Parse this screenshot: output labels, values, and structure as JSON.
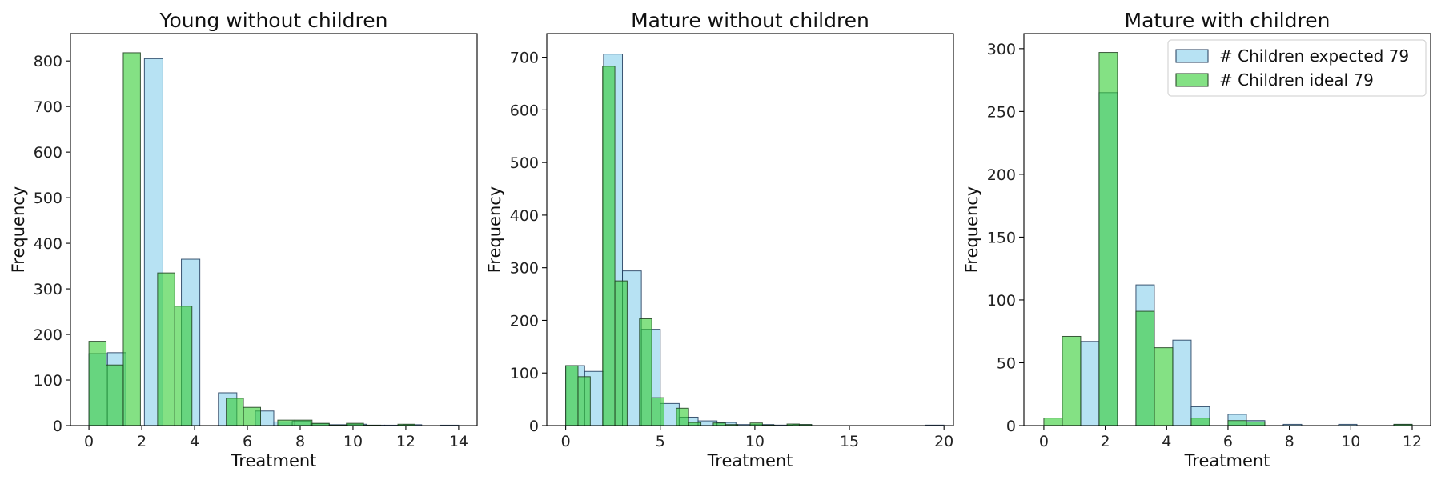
{
  "chart_data": [
    {
      "type": "bar",
      "title": "Young without children",
      "xlabel": "Treatment",
      "ylabel": "Frequency",
      "xlim": [
        -0.7,
        14.7
      ],
      "ylim": [
        0,
        860
      ],
      "xticks": [
        0,
        2,
        4,
        6,
        8,
        10,
        12,
        14
      ],
      "yticks": [
        0,
        100,
        200,
        300,
        400,
        500,
        600,
        700,
        800
      ],
      "legend": null,
      "series": [
        {
          "name": "# Children expected 79",
          "color": "#87ceeb",
          "bins": [
            {
              "x0": 0.0,
              "x1": 0.7,
              "y": 158
            },
            {
              "x0": 0.7,
              "x1": 1.4,
              "y": 160
            },
            {
              "x0": 1.4,
              "x1": 2.1,
              "y": 0
            },
            {
              "x0": 2.1,
              "x1": 2.8,
              "y": 805
            },
            {
              "x0": 2.8,
              "x1": 3.5,
              "y": 0
            },
            {
              "x0": 3.5,
              "x1": 4.2,
              "y": 365
            },
            {
              "x0": 4.2,
              "x1": 4.9,
              "y": 0
            },
            {
              "x0": 4.9,
              "x1": 5.6,
              "y": 72
            },
            {
              "x0": 5.6,
              "x1": 6.3,
              "y": 0
            },
            {
              "x0": 6.3,
              "x1": 7.0,
              "y": 32
            },
            {
              "x0": 7.0,
              "x1": 7.7,
              "y": 8
            },
            {
              "x0": 7.7,
              "x1": 8.4,
              "y": 10
            },
            {
              "x0": 8.4,
              "x1": 9.1,
              "y": 4
            },
            {
              "x0": 9.1,
              "x1": 9.8,
              "y": 2
            },
            {
              "x0": 9.8,
              "x1": 10.5,
              "y": 3
            },
            {
              "x0": 10.5,
              "x1": 11.2,
              "y": 1
            },
            {
              "x0": 11.2,
              "x1": 11.9,
              "y": 1
            },
            {
              "x0": 11.9,
              "x1": 12.6,
              "y": 2
            },
            {
              "x0": 12.6,
              "x1": 13.3,
              "y": 0
            },
            {
              "x0": 13.3,
              "x1": 14.0,
              "y": 1
            }
          ]
        },
        {
          "name": "# Children ideal 79",
          "color": "#32cd32",
          "bins": [
            {
              "x0": 0.0,
              "x1": 0.65,
              "y": 185
            },
            {
              "x0": 0.65,
              "x1": 1.3,
              "y": 133
            },
            {
              "x0": 1.3,
              "x1": 1.95,
              "y": 818
            },
            {
              "x0": 1.95,
              "x1": 2.6,
              "y": 0
            },
            {
              "x0": 2.6,
              "x1": 3.25,
              "y": 335
            },
            {
              "x0": 3.25,
              "x1": 3.9,
              "y": 262
            },
            {
              "x0": 3.9,
              "x1": 4.55,
              "y": 0
            },
            {
              "x0": 4.55,
              "x1": 5.2,
              "y": 0
            },
            {
              "x0": 5.2,
              "x1": 5.85,
              "y": 60
            },
            {
              "x0": 5.85,
              "x1": 6.5,
              "y": 40
            },
            {
              "x0": 6.5,
              "x1": 7.15,
              "y": 0
            },
            {
              "x0": 7.15,
              "x1": 7.8,
              "y": 12
            },
            {
              "x0": 7.8,
              "x1": 8.45,
              "y": 12
            },
            {
              "x0": 8.45,
              "x1": 9.1,
              "y": 5
            },
            {
              "x0": 9.1,
              "x1": 9.75,
              "y": 1
            },
            {
              "x0": 9.75,
              "x1": 10.4,
              "y": 5
            },
            {
              "x0": 10.4,
              "x1": 11.05,
              "y": 1
            },
            {
              "x0": 11.05,
              "x1": 11.7,
              "y": 0
            },
            {
              "x0": 11.7,
              "x1": 12.35,
              "y": 3
            },
            {
              "x0": 12.35,
              "x1": 13.0,
              "y": 0
            }
          ]
        }
      ]
    },
    {
      "type": "bar",
      "title": "Mature without children",
      "xlabel": "Treatment",
      "ylabel": "Frequency",
      "xlim": [
        -1.0,
        20.5
      ],
      "ylim": [
        0,
        745
      ],
      "xticks": [
        0,
        5,
        10,
        15,
        20
      ],
      "yticks": [
        0,
        100,
        200,
        300,
        400,
        500,
        600,
        700
      ],
      "legend": null,
      "series": [
        {
          "name": "# Children expected 79",
          "color": "#87ceeb",
          "bins": [
            {
              "x0": 0.0,
              "x1": 1.0,
              "y": 114
            },
            {
              "x0": 1.0,
              "x1": 2.0,
              "y": 103
            },
            {
              "x0": 2.0,
              "x1": 3.0,
              "y": 706
            },
            {
              "x0": 3.0,
              "x1": 4.0,
              "y": 294
            },
            {
              "x0": 4.0,
              "x1": 5.0,
              "y": 183
            },
            {
              "x0": 5.0,
              "x1": 6.0,
              "y": 42
            },
            {
              "x0": 6.0,
              "x1": 7.0,
              "y": 16
            },
            {
              "x0": 7.0,
              "x1": 8.0,
              "y": 9
            },
            {
              "x0": 8.0,
              "x1": 9.0,
              "y": 6
            },
            {
              "x0": 9.0,
              "x1": 10.0,
              "y": 2
            },
            {
              "x0": 10.0,
              "x1": 11.0,
              "y": 2
            },
            {
              "x0": 11.0,
              "x1": 12.0,
              "y": 1
            },
            {
              "x0": 12.0,
              "x1": 13.0,
              "y": 2
            },
            {
              "x0": 13.0,
              "x1": 14.0,
              "y": 0
            },
            {
              "x0": 14.0,
              "x1": 15.0,
              "y": 0
            },
            {
              "x0": 15.0,
              "x1": 16.0,
              "y": 0
            },
            {
              "x0": 16.0,
              "x1": 17.0,
              "y": 0
            },
            {
              "x0": 17.0,
              "x1": 18.0,
              "y": 0
            },
            {
              "x0": 18.0,
              "x1": 19.0,
              "y": 0
            },
            {
              "x0": 19.0,
              "x1": 20.0,
              "y": 1
            }
          ]
        },
        {
          "name": "# Children ideal 79",
          "color": "#32cd32",
          "bins": [
            {
              "x0": 0.0,
              "x1": 0.65,
              "y": 114
            },
            {
              "x0": 0.65,
              "x1": 1.3,
              "y": 93
            },
            {
              "x0": 1.3,
              "x1": 1.95,
              "y": 0
            },
            {
              "x0": 1.95,
              "x1": 2.6,
              "y": 683
            },
            {
              "x0": 2.6,
              "x1": 3.25,
              "y": 275
            },
            {
              "x0": 3.25,
              "x1": 3.9,
              "y": 0
            },
            {
              "x0": 3.9,
              "x1": 4.55,
              "y": 203
            },
            {
              "x0": 4.55,
              "x1": 5.2,
              "y": 53
            },
            {
              "x0": 5.2,
              "x1": 5.85,
              "y": 0
            },
            {
              "x0": 5.85,
              "x1": 6.5,
              "y": 33
            },
            {
              "x0": 6.5,
              "x1": 7.15,
              "y": 6
            },
            {
              "x0": 7.15,
              "x1": 7.8,
              "y": 0
            },
            {
              "x0": 7.8,
              "x1": 8.45,
              "y": 5
            },
            {
              "x0": 8.45,
              "x1": 9.1,
              "y": 2
            },
            {
              "x0": 9.1,
              "x1": 9.75,
              "y": 0
            },
            {
              "x0": 9.75,
              "x1": 10.4,
              "y": 5
            },
            {
              "x0": 10.4,
              "x1": 11.05,
              "y": 1
            },
            {
              "x0": 11.05,
              "x1": 11.7,
              "y": 0
            },
            {
              "x0": 11.7,
              "x1": 12.35,
              "y": 3
            },
            {
              "x0": 12.35,
              "x1": 13.0,
              "y": 2
            }
          ]
        }
      ]
    },
    {
      "type": "bar",
      "title": "Mature with children",
      "xlabel": "Treatment",
      "ylabel": "Frequency",
      "xlim": [
        -0.65,
        12.6
      ],
      "ylim": [
        0,
        312
      ],
      "xticks": [
        0,
        2,
        4,
        6,
        8,
        10,
        12
      ],
      "yticks": [
        0,
        50,
        100,
        150,
        200,
        250,
        300
      ],
      "legend": "upper right",
      "series": [
        {
          "name": "# Children expected 79",
          "color": "#87ceeb",
          "bins": [
            {
              "x0": 0.0,
              "x1": 0.6,
              "y": 0
            },
            {
              "x0": 0.6,
              "x1": 1.2,
              "y": 0
            },
            {
              "x0": 1.2,
              "x1": 1.8,
              "y": 67
            },
            {
              "x0": 1.8,
              "x1": 2.4,
              "y": 265
            },
            {
              "x0": 2.4,
              "x1": 3.0,
              "y": 0
            },
            {
              "x0": 3.0,
              "x1": 3.6,
              "y": 112
            },
            {
              "x0": 3.6,
              "x1": 4.2,
              "y": 0
            },
            {
              "x0": 4.2,
              "x1": 4.8,
              "y": 68
            },
            {
              "x0": 4.8,
              "x1": 5.4,
              "y": 15
            },
            {
              "x0": 5.4,
              "x1": 6.0,
              "y": 0
            },
            {
              "x0": 6.0,
              "x1": 6.6,
              "y": 9
            },
            {
              "x0": 6.6,
              "x1": 7.2,
              "y": 4
            },
            {
              "x0": 7.2,
              "x1": 7.8,
              "y": 0
            },
            {
              "x0": 7.8,
              "x1": 8.4,
              "y": 1
            },
            {
              "x0": 8.4,
              "x1": 9.0,
              "y": 0
            },
            {
              "x0": 9.0,
              "x1": 9.6,
              "y": 0
            },
            {
              "x0": 9.6,
              "x1": 10.2,
              "y": 1
            },
            {
              "x0": 10.2,
              "x1": 10.8,
              "y": 0
            },
            {
              "x0": 10.8,
              "x1": 11.4,
              "y": 0
            },
            {
              "x0": 11.4,
              "x1": 12.0,
              "y": 1
            }
          ]
        },
        {
          "name": "# Children ideal 79",
          "color": "#32cd32",
          "bins": [
            {
              "x0": 0.0,
              "x1": 0.6,
              "y": 6
            },
            {
              "x0": 0.6,
              "x1": 1.2,
              "y": 71
            },
            {
              "x0": 1.2,
              "x1": 1.8,
              "y": 0
            },
            {
              "x0": 1.8,
              "x1": 2.4,
              "y": 297
            },
            {
              "x0": 2.4,
              "x1": 3.0,
              "y": 0
            },
            {
              "x0": 3.0,
              "x1": 3.6,
              "y": 91
            },
            {
              "x0": 3.6,
              "x1": 4.2,
              "y": 62
            },
            {
              "x0": 4.2,
              "x1": 4.8,
              "y": 0
            },
            {
              "x0": 4.8,
              "x1": 5.4,
              "y": 6
            },
            {
              "x0": 5.4,
              "x1": 6.0,
              "y": 0
            },
            {
              "x0": 6.0,
              "x1": 6.6,
              "y": 4
            },
            {
              "x0": 6.6,
              "x1": 7.2,
              "y": 3
            },
            {
              "x0": 7.2,
              "x1": 7.8,
              "y": 0
            },
            {
              "x0": 7.8,
              "x1": 8.4,
              "y": 0
            },
            {
              "x0": 8.4,
              "x1": 9.0,
              "y": 0
            },
            {
              "x0": 9.0,
              "x1": 9.6,
              "y": 0
            },
            {
              "x0": 9.6,
              "x1": 10.2,
              "y": 0
            },
            {
              "x0": 10.2,
              "x1": 10.8,
              "y": 0
            },
            {
              "x0": 10.8,
              "x1": 11.4,
              "y": 0
            },
            {
              "x0": 11.4,
              "x1": 12.0,
              "y": 1
            }
          ]
        }
      ]
    }
  ]
}
